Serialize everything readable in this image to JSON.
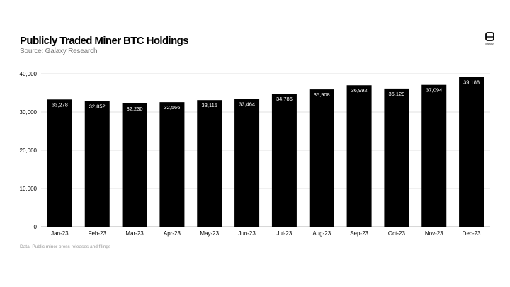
{
  "header": {
    "title": "Publicly Traded Miner BTC Holdings",
    "subtitle": "Source: Galaxy Research"
  },
  "logo": {
    "icon": "galaxy-logo-icon",
    "text": "galaxy"
  },
  "footnote": "Data: Public miner press releases and filings",
  "colors": {
    "bar": "#000000",
    "bar_label": "#ffffff",
    "grid": "#d9d9d9",
    "axis": "#999999"
  },
  "chart_data": {
    "type": "bar",
    "categories": [
      "Jan-23",
      "Feb-23",
      "Mar-23",
      "Apr-23",
      "May-23",
      "Jun-23",
      "Jul-23",
      "Aug-23",
      "Sep-23",
      "Oct-23",
      "Nov-23",
      "Dec-23"
    ],
    "values": [
      33278,
      32852,
      32230,
      32566,
      33115,
      33464,
      34786,
      35908,
      36992,
      36129,
      37094,
      39188
    ],
    "value_labels": [
      "33,278",
      "32,852",
      "32,230",
      "32,566",
      "33,115",
      "33,464",
      "34,786",
      "35,908",
      "36,992",
      "36,129",
      "37,094",
      "39,188"
    ],
    "yticks": [
      0,
      10000,
      20000,
      30000,
      40000
    ],
    "ytick_labels": [
      "0",
      "10,000",
      "20,000",
      "30,000",
      "40,000"
    ],
    "ylim": [
      0,
      40000
    ],
    "grid": true,
    "legend": "none",
    "title": "Publicly Traded Miner BTC Holdings",
    "xlabel": "",
    "ylabel": ""
  }
}
